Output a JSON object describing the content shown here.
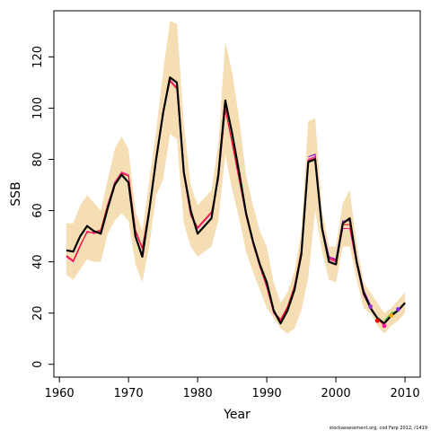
{
  "chart_data": {
    "type": "line",
    "title": "",
    "xlabel": "Year",
    "ylabel": "SSB",
    "xlim": [
      1959.2,
      2012.2
    ],
    "ylim": [
      -5,
      138
    ],
    "x_ticks": [
      1960,
      1970,
      1980,
      1990,
      2000,
      2010
    ],
    "y_ticks": [
      0,
      20,
      40,
      60,
      80,
      100,
      120
    ],
    "grid": false,
    "legend": "none",
    "credit": "stockassessment.org, cod Farp 2012, r1419",
    "band": {
      "color": "#F5DEB3",
      "x": [
        1961,
        1962,
        1963,
        1964,
        1965,
        1966,
        1967,
        1968,
        1969,
        1970,
        1971,
        1972,
        1973,
        1974,
        1975,
        1976,
        1977,
        1978,
        1979,
        1980,
        1981,
        1982,
        1983,
        1984,
        1985,
        1986,
        1987,
        1988,
        1989,
        1990,
        1991,
        1992,
        1993,
        1994,
        1995,
        1996,
        1997,
        1998,
        1999,
        2000,
        2001,
        2002,
        2003,
        2004,
        2005,
        2006,
        2007,
        2008,
        2009,
        2010
      ],
      "upper": [
        55,
        55,
        62,
        66,
        63,
        60,
        72,
        84,
        89,
        84,
        60,
        52,
        72,
        91,
        114,
        134,
        133,
        94,
        70,
        62,
        65,
        68,
        86,
        126,
        114,
        96,
        74,
        62,
        52,
        46,
        32,
        24,
        28,
        36,
        52,
        95,
        96,
        60,
        46,
        46,
        63,
        68,
        47,
        32,
        28,
        24,
        20,
        22,
        25,
        28
      ],
      "lower": [
        35,
        33,
        37,
        41,
        40,
        40,
        51,
        56,
        59,
        56,
        39,
        32,
        46,
        66,
        72,
        90,
        88,
        55,
        46,
        42,
        44,
        46,
        56,
        82,
        68,
        57,
        44,
        36,
        29,
        22,
        18,
        14,
        12,
        14,
        21,
        34,
        60,
        44,
        33,
        32,
        46,
        46,
        33,
        22,
        20,
        15,
        12,
        15,
        17,
        20
      ]
    },
    "series": [
      {
        "color": "#000000",
        "x": [
          1961,
          1962,
          1963,
          1964,
          1965,
          1966,
          1967,
          1968,
          1969,
          1970,
          1971,
          1972,
          1973,
          1974,
          1975,
          1976,
          1977,
          1978,
          1979,
          1980,
          1981,
          1982,
          1983,
          1984,
          1985,
          1986,
          1987,
          1988,
          1989,
          1990,
          1991,
          1992,
          1993,
          1994,
          1995,
          1996,
          1997,
          1998,
          1999,
          2000,
          2001,
          2002,
          2003,
          2004,
          2005,
          2006,
          2007,
          2008,
          2009,
          2010
        ],
        "values": [
          44.5,
          44,
          50,
          54,
          52,
          51,
          61,
          70,
          74,
          71,
          50,
          42,
          60,
          80,
          98,
          112,
          110,
          75,
          60,
          51,
          54,
          57,
          74,
          103,
          90,
          75,
          59,
          48,
          39,
          32,
          21,
          16,
          21,
          29,
          43,
          79,
          80,
          53,
          40,
          39,
          55,
          57,
          40,
          28,
          22,
          18,
          16,
          19,
          21,
          24
        ]
      },
      {
        "color": "#FF1493",
        "x": [
          1961,
          1962,
          1963,
          1964,
          1965,
          1966,
          1967,
          1968,
          1969,
          1970,
          1971,
          1972,
          1973,
          1974,
          1975,
          1976,
          1977,
          1978,
          1979,
          1980,
          1981,
          1982,
          1983,
          1984,
          1985,
          1986,
          1987,
          1988,
          1989,
          1990,
          1991,
          1992,
          1993,
          1994,
          1995,
          1996,
          1997,
          1998,
          1999,
          2000,
          2001,
          2002,
          2003,
          2004,
          2005,
          2006,
          2007
        ],
        "values": [
          42,
          40,
          46,
          52,
          51,
          52,
          62,
          71,
          75,
          74,
          52,
          45,
          61,
          81,
          99,
          111,
          108,
          74,
          58,
          53,
          56,
          59,
          72,
          100,
          86,
          72,
          58,
          47,
          38,
          30,
          20,
          17,
          22,
          30,
          44,
          80,
          81,
          52,
          41,
          40,
          53,
          53,
          39,
          27,
          22,
          18,
          15
        ]
      },
      {
        "color": "#E8112D",
        "x": [
          1961,
          1962,
          1963,
          1964,
          1965,
          1966,
          1967,
          1968,
          1969,
          1970,
          1971,
          1972,
          1973,
          1974,
          1975,
          1976,
          1977,
          1978,
          1979,
          1980,
          1981,
          1982,
          1983,
          1984,
          1985,
          1986,
          1987,
          1988,
          1989,
          1990,
          1991,
          1992,
          1993,
          1994,
          1995,
          1996,
          1997,
          1998,
          1999,
          2000,
          2001,
          2002,
          2003,
          2004,
          2005,
          2006,
          2007
        ],
        "values": [
          42.5,
          40.5,
          46.5,
          51.5,
          51.5,
          52.5,
          62.5,
          70.5,
          74.5,
          73.5,
          52.5,
          45.5,
          60.5,
          80.5,
          98.5,
          110.5,
          107.5,
          74.5,
          58.5,
          53.5,
          56.5,
          59.5,
          72.5,
          99.5,
          86.5,
          72.5,
          58.5,
          47.5,
          38.5,
          30.5,
          20.5,
          17.5,
          22.5,
          30.5,
          44.5,
          79.5,
          80.5,
          52.5,
          41.5,
          40.5,
          54.5,
          54.5,
          39.5,
          27.5,
          22.5,
          17.5,
          15.5
        ]
      },
      {
        "color": "#9400D3",
        "x": [
          1996,
          1997,
          1998,
          1999,
          2000,
          2001,
          2002,
          2003,
          2004,
          2005
        ],
        "values": [
          81,
          82,
          54,
          42,
          41,
          56,
          56,
          41,
          29,
          23
        ]
      },
      {
        "color": "#32CD32",
        "x": [
          2007,
          2008,
          2009
        ],
        "values": [
          17,
          20,
          21
        ]
      }
    ],
    "markers": [
      {
        "x": 2005,
        "y": 22.5,
        "color": "#9932CC"
      },
      {
        "x": 2006,
        "y": 17,
        "color": "#FF0000"
      },
      {
        "x": 2007,
        "y": 15,
        "color": "#FF1493"
      },
      {
        "x": 2008,
        "y": 19,
        "color": "#FFA500"
      },
      {
        "x": 2009,
        "y": 21.5,
        "color": "#8A2BE2"
      }
    ]
  }
}
